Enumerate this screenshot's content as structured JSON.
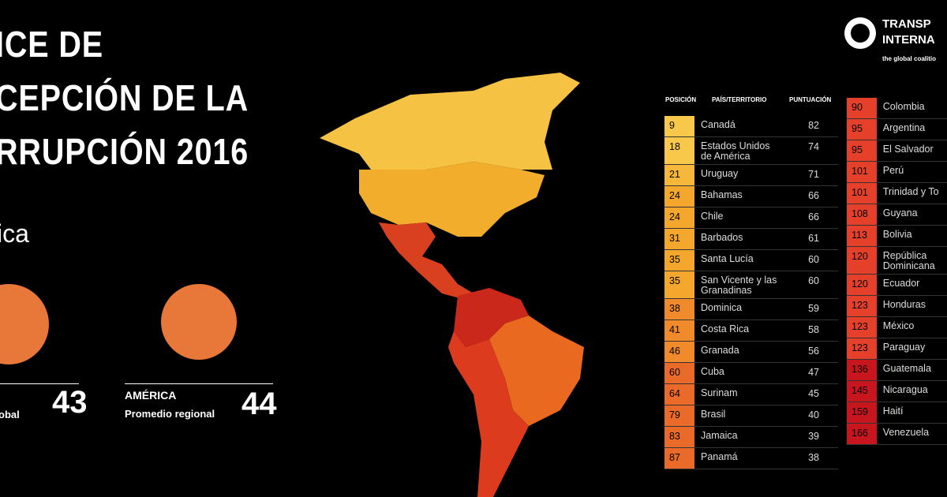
{
  "header": {
    "title_lines": [
      "ICE DE",
      "CEPCIÓN DE LA",
      "RRUPCIÓN 2016"
    ],
    "region": "ica"
  },
  "stats": [
    {
      "sublabel": "obal",
      "value": "43"
    },
    {
      "label": "AMÉRICA",
      "sublabel": "Promedio regional",
      "value": "44"
    }
  ],
  "logo": {
    "lines": [
      "TRANSP",
      "INTERNA"
    ],
    "tagline": "the global coalitio"
  },
  "table": {
    "headers": [
      "POSICIÓN",
      "PAÍS/TERRITORIO",
      "PUNTUACIÓN"
    ],
    "left": [
      {
        "rank": "9",
        "country": "Canadá",
        "score": "82",
        "color": "#f7c84a"
      },
      {
        "rank": "18",
        "country": "Estados Unidos de América",
        "score": "74",
        "color": "#f7c84a"
      },
      {
        "rank": "21",
        "country": "Uruguay",
        "score": "71",
        "color": "#f6b73a"
      },
      {
        "rank": "24",
        "country": "Bahamas",
        "score": "66",
        "color": "#f4a62d"
      },
      {
        "rank": "24",
        "country": "Chile",
        "score": "66",
        "color": "#f4a62d"
      },
      {
        "rank": "31",
        "country": "Barbados",
        "score": "61",
        "color": "#f4a62d"
      },
      {
        "rank": "35",
        "country": "Santa Lucía",
        "score": "60",
        "color": "#f4a62d"
      },
      {
        "rank": "35",
        "country": "San Vicente y las Granadinas",
        "score": "60",
        "color": "#f4a62d"
      },
      {
        "rank": "38",
        "country": "Dominica",
        "score": "59",
        "color": "#f08a2a"
      },
      {
        "rank": "41",
        "country": "Costa Rica",
        "score": "58",
        "color": "#f08a2a"
      },
      {
        "rank": "46",
        "country": "Granada",
        "score": "56",
        "color": "#f08a2a"
      },
      {
        "rank": "60",
        "country": "Cuba",
        "score": "47",
        "color": "#ea6a2a"
      },
      {
        "rank": "64",
        "country": "Surinam",
        "score": "45",
        "color": "#ea6a2a"
      },
      {
        "rank": "79",
        "country": "Brasil",
        "score": "40",
        "color": "#ea6a2a"
      },
      {
        "rank": "83",
        "country": "Jamaica",
        "score": "39",
        "color": "#ea6a2a"
      },
      {
        "rank": "87",
        "country": "Panamá",
        "score": "38",
        "color": "#ea6a2a"
      }
    ],
    "right": [
      {
        "rank": "90",
        "country": "Colombia",
        "color": "#e4402a"
      },
      {
        "rank": "95",
        "country": "Argentina",
        "color": "#e4402a"
      },
      {
        "rank": "95",
        "country": "El Salvador",
        "color": "#e4402a"
      },
      {
        "rank": "101",
        "country": "Perú",
        "color": "#e4402a"
      },
      {
        "rank": "101",
        "country": "Trinidad y To",
        "color": "#e4402a"
      },
      {
        "rank": "108",
        "country": "Guyana",
        "color": "#e4402a"
      },
      {
        "rank": "113",
        "country": "Bolivia",
        "color": "#e4402a"
      },
      {
        "rank": "120",
        "country": "República Dominicana",
        "color": "#e4402a"
      },
      {
        "rank": "120",
        "country": "Ecuador",
        "color": "#e4402a"
      },
      {
        "rank": "123",
        "country": "Honduras",
        "color": "#e4402a"
      },
      {
        "rank": "123",
        "country": "México",
        "color": "#e4402a"
      },
      {
        "rank": "123",
        "country": "Paraguay",
        "color": "#e4402a"
      },
      {
        "rank": "136",
        "country": "Guatemala",
        "color": "#c8161e"
      },
      {
        "rank": "145",
        "country": "Nicaragua",
        "color": "#c8161e"
      },
      {
        "rank": "159",
        "country": "Haití",
        "color": "#c8161e"
      },
      {
        "rank": "166",
        "country": "Venezuela",
        "color": "#c8161e"
      }
    ]
  }
}
